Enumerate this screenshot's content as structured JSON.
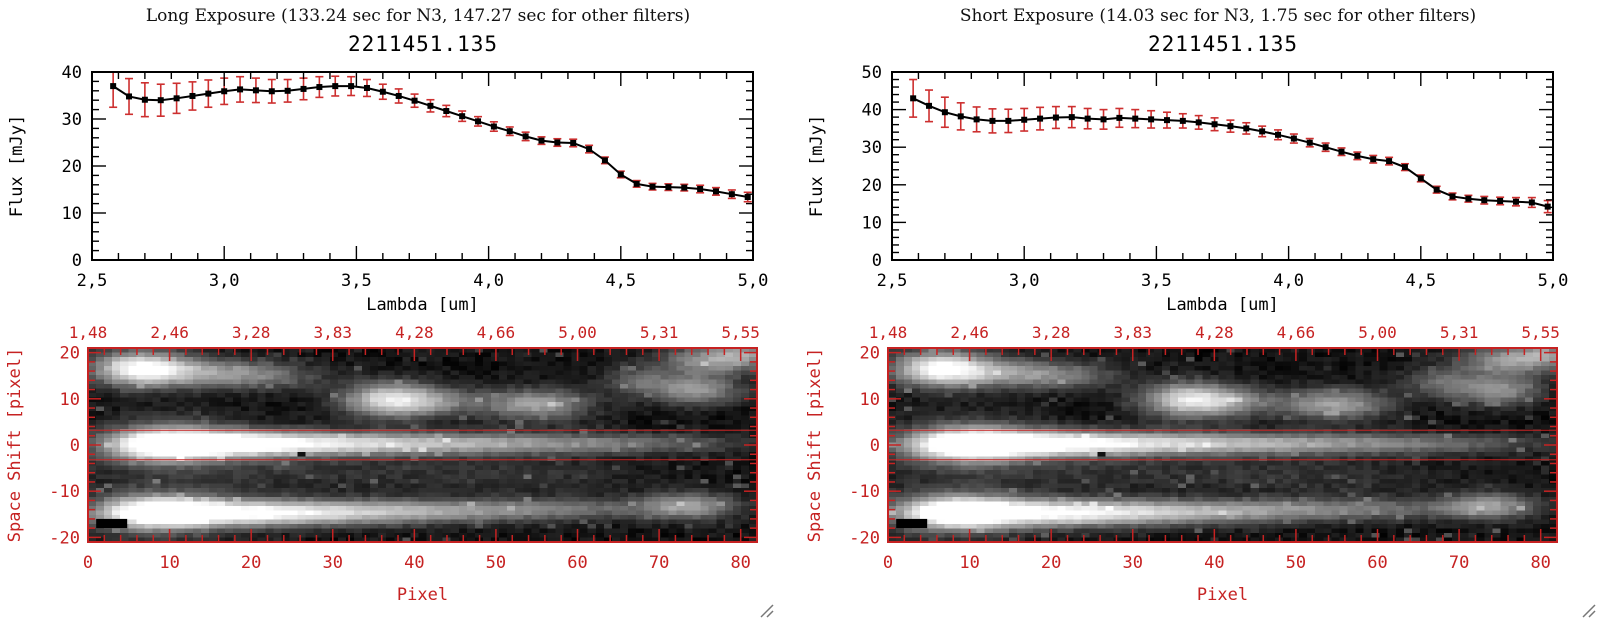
{
  "colors": {
    "error_red": "#cd2f2f",
    "image_red": "#c62222",
    "axis_black": "#000000",
    "grip_gray": "#777777"
  },
  "icons": {
    "resize_grip": "diagonal-resize-grip"
  },
  "panels": [
    {
      "header": "Long Exposure (133.24 sec for N3, 147.27 sec for other filters)",
      "spectrum": 0,
      "image": 1
    },
    {
      "header": "Short Exposure (14.03 sec for N3, 1.75 sec for other filters)",
      "spectrum": 2,
      "image": 3
    }
  ],
  "chart_data": [
    {
      "type": "line",
      "title": "2211451.135",
      "xlabel": "Lambda [um]",
      "ylabel": "Flux [mJy]",
      "xlim": [
        2.5,
        5.0
      ],
      "ylim": [
        0,
        40
      ],
      "xminor": 0.1,
      "yminor": 2,
      "xticks": [
        2.5,
        3.0,
        3.5,
        4.0,
        4.5,
        5.0
      ],
      "xtick_labels": [
        "2,5",
        "3,0",
        "3,5",
        "4,0",
        "4,5",
        "5,0"
      ],
      "yticks": [
        0,
        10,
        20,
        30,
        40
      ],
      "ytick_labels": [
        "0",
        "10",
        "20",
        "30",
        "40"
      ],
      "x": [
        2.58,
        2.64,
        2.7,
        2.76,
        2.82,
        2.88,
        2.94,
        3.0,
        3.06,
        3.12,
        3.18,
        3.24,
        3.3,
        3.36,
        3.42,
        3.48,
        3.54,
        3.6,
        3.66,
        3.72,
        3.78,
        3.84,
        3.9,
        3.96,
        4.02,
        4.08,
        4.14,
        4.2,
        4.26,
        4.32,
        4.38,
        4.44,
        4.5,
        4.56,
        4.62,
        4.68,
        4.74,
        4.8,
        4.86,
        4.92,
        4.98
      ],
      "y": [
        37.0,
        34.8,
        34.1,
        34.0,
        34.4,
        34.9,
        35.4,
        35.9,
        36.3,
        36.1,
        35.9,
        36.0,
        36.4,
        36.8,
        37.0,
        37.0,
        36.6,
        35.8,
        34.9,
        33.9,
        32.8,
        31.7,
        30.6,
        29.5,
        28.4,
        27.4,
        26.3,
        25.4,
        25.0,
        24.9,
        23.6,
        21.2,
        18.2,
        16.2,
        15.6,
        15.5,
        15.4,
        15.1,
        14.6,
        14.0,
        13.4
      ],
      "yerr": [
        4.5,
        3.8,
        3.6,
        3.4,
        3.2,
        3.0,
        2.9,
        2.8,
        2.7,
        2.6,
        2.5,
        2.4,
        2.3,
        2.2,
        2.1,
        2.0,
        1.8,
        1.6,
        1.5,
        1.4,
        1.3,
        1.2,
        1.1,
        1.0,
        1.0,
        0.9,
        0.9,
        0.8,
        0.8,
        0.8,
        0.8,
        0.7,
        0.7,
        0.7,
        0.7,
        0.7,
        0.7,
        0.8,
        0.8,
        0.9,
        1.0
      ]
    },
    {
      "type": "heatmap",
      "xlabel": "Pixel",
      "ylabel": "Space Shift [pixel]",
      "xlim": [
        0,
        82
      ],
      "ylim": [
        -21,
        21
      ],
      "xticks": [
        0,
        10,
        20,
        30,
        40,
        50,
        60,
        70,
        80
      ],
      "xtick_labels": [
        "0",
        "10",
        "20",
        "30",
        "40",
        "50",
        "60",
        "70",
        "80"
      ],
      "yticks": [
        -20,
        -10,
        0,
        10,
        20
      ],
      "ytick_labels": [
        "-20",
        "-10",
        "0",
        "10",
        "20"
      ],
      "top_axis_labels": [
        "1,48",
        "2,46",
        "3,28",
        "3,83",
        "4,28",
        "4,66",
        "5,00",
        "5,31",
        "5,55"
      ],
      "aperture_y": [
        3.2,
        -3.2
      ],
      "noise_seed": 11,
      "dark_spots": [
        {
          "x": 26,
          "y": -2
        }
      ],
      "marker_rect": {
        "x0": 1,
        "x1": 4.8,
        "y0": -18,
        "y1": -16
      },
      "blobs": [
        {
          "x": 9,
          "y": 0,
          "sx": 5,
          "sy": 2.4,
          "amp": 1.0
        },
        {
          "x": 10,
          "y": 1,
          "sx": 6,
          "sy": 4,
          "amp": 0.2
        },
        {
          "x": 18,
          "y": 0.3,
          "sx": 7,
          "sy": 2.0,
          "amp": 0.8
        },
        {
          "x": 30,
          "y": 0.3,
          "sx": 9,
          "sy": 1.8,
          "amp": 0.55
        },
        {
          "x": 44,
          "y": 0.3,
          "sx": 10,
          "sy": 1.7,
          "amp": 0.4
        },
        {
          "x": 58,
          "y": 0.3,
          "sx": 9,
          "sy": 1.6,
          "amp": 0.28
        },
        {
          "x": 72,
          "y": 0.3,
          "sx": 8,
          "sy": 1.5,
          "amp": 0.18
        },
        {
          "x": 8,
          "y": -15,
          "sx": 5,
          "sy": 2.4,
          "amp": 0.95
        },
        {
          "x": 8,
          "y": -15,
          "sx": 6,
          "sy": 4,
          "amp": 0.2
        },
        {
          "x": 18,
          "y": -15,
          "sx": 8,
          "sy": 2.1,
          "amp": 0.7
        },
        {
          "x": 31,
          "y": -15,
          "sx": 10,
          "sy": 1.9,
          "amp": 0.5
        },
        {
          "x": 46,
          "y": -14.5,
          "sx": 11,
          "sy": 1.7,
          "amp": 0.33
        },
        {
          "x": 60,
          "y": -14,
          "sx": 9,
          "sy": 1.6,
          "amp": 0.22
        },
        {
          "x": 74,
          "y": -13.5,
          "sx": 4,
          "sy": 2.0,
          "amp": 0.5
        },
        {
          "x": 6,
          "y": 17,
          "sx": 4,
          "sy": 2.6,
          "amp": 0.9
        },
        {
          "x": 14,
          "y": 16,
          "sx": 6,
          "sy": 2.2,
          "amp": 0.45
        },
        {
          "x": 22,
          "y": 15,
          "sx": 5,
          "sy": 2.0,
          "amp": 0.22
        },
        {
          "x": 37,
          "y": 10,
          "sx": 4,
          "sy": 2.6,
          "amp": 0.8
        },
        {
          "x": 43,
          "y": 9.5,
          "sx": 4,
          "sy": 2.1,
          "amp": 0.3
        },
        {
          "x": 55,
          "y": 9,
          "sx": 4.5,
          "sy": 2.3,
          "amp": 0.55
        },
        {
          "x": 68,
          "y": 14,
          "sx": 3,
          "sy": 2.2,
          "amp": 0.3
        },
        {
          "x": 75,
          "y": 12,
          "sx": 3.5,
          "sy": 2.1,
          "amp": 0.5
        },
        {
          "x": 76,
          "y": 18.5,
          "sx": 4,
          "sy": 2.4,
          "amp": 0.45
        },
        {
          "x": 81,
          "y": 20,
          "sx": 3,
          "sy": 2,
          "amp": 0.4
        },
        {
          "x": 25,
          "y": -6,
          "sx": 18,
          "sy": 3,
          "amp": 0.1
        },
        {
          "x": 55,
          "y": -7,
          "sx": 10,
          "sy": 3,
          "amp": 0.08
        }
      ]
    },
    {
      "type": "line",
      "title": "2211451.135",
      "xlabel": "Lambda [um]",
      "ylabel": "Flux [mJy]",
      "xlim": [
        2.5,
        5.0
      ],
      "ylim": [
        0,
        50
      ],
      "xminor": 0.1,
      "yminor": 2,
      "xticks": [
        2.5,
        3.0,
        3.5,
        4.0,
        4.5,
        5.0
      ],
      "xtick_labels": [
        "2,5",
        "3,0",
        "3,5",
        "4,0",
        "4,5",
        "5,0"
      ],
      "yticks": [
        0,
        10,
        20,
        30,
        40,
        50
      ],
      "ytick_labels": [
        "0",
        "10",
        "20",
        "30",
        "40",
        "50"
      ],
      "x": [
        2.58,
        2.64,
        2.7,
        2.76,
        2.82,
        2.88,
        2.94,
        3.0,
        3.06,
        3.12,
        3.18,
        3.24,
        3.3,
        3.36,
        3.42,
        3.48,
        3.54,
        3.6,
        3.66,
        3.72,
        3.78,
        3.84,
        3.9,
        3.96,
        4.02,
        4.08,
        4.14,
        4.2,
        4.26,
        4.32,
        4.38,
        4.44,
        4.5,
        4.56,
        4.62,
        4.68,
        4.74,
        4.8,
        4.86,
        4.92,
        4.98
      ],
      "y": [
        43.0,
        41.0,
        39.3,
        38.2,
        37.4,
        37.0,
        37.0,
        37.3,
        37.6,
        37.9,
        38.0,
        37.6,
        37.4,
        37.8,
        37.6,
        37.4,
        37.2,
        37.0,
        36.6,
        36.1,
        35.6,
        35.0,
        34.2,
        33.3,
        32.3,
        31.2,
        30.0,
        28.8,
        27.7,
        26.8,
        26.3,
        24.7,
        21.7,
        18.7,
        16.9,
        16.3,
        15.9,
        15.7,
        15.5,
        15.3,
        14.2
      ],
      "yerr": [
        5.0,
        4.2,
        4.0,
        3.6,
        3.3,
        3.2,
        3.1,
        3.0,
        3.0,
        2.9,
        2.8,
        2.7,
        2.6,
        2.5,
        2.4,
        2.3,
        2.1,
        1.9,
        1.8,
        1.7,
        1.6,
        1.5,
        1.4,
        1.3,
        1.2,
        1.1,
        1.1,
        1.0,
        1.0,
        1.0,
        1.0,
        0.9,
        0.9,
        0.9,
        0.9,
        0.9,
        1.0,
        1.0,
        1.1,
        1.3,
        1.6
      ]
    },
    {
      "type": "heatmap",
      "xlabel": "Pixel",
      "ylabel": "Space Shift [pixel]",
      "xlim": [
        0,
        82
      ],
      "ylim": [
        -21,
        21
      ],
      "xticks": [
        0,
        10,
        20,
        30,
        40,
        50,
        60,
        70,
        80
      ],
      "xtick_labels": [
        "0",
        "10",
        "20",
        "30",
        "40",
        "50",
        "60",
        "70",
        "80"
      ],
      "yticks": [
        -20,
        -10,
        0,
        10,
        20
      ],
      "ytick_labels": [
        "-20",
        "-10",
        "0",
        "10",
        "20"
      ],
      "top_axis_labels": [
        "1,48",
        "2,46",
        "3,28",
        "3,83",
        "4,28",
        "4,66",
        "5,00",
        "5,31",
        "5,55"
      ],
      "aperture_y": [
        3.2,
        -3.2
      ],
      "noise_seed": 29,
      "dark_spots": [
        {
          "x": 26,
          "y": -2
        }
      ],
      "marker_rect": {
        "x0": 1,
        "x1": 4.8,
        "y0": -18,
        "y1": -16
      },
      "blobs": [
        {
          "x": 9,
          "y": 0,
          "sx": 5,
          "sy": 2.4,
          "amp": 1.0
        },
        {
          "x": 10,
          "y": 1,
          "sx": 6,
          "sy": 4,
          "amp": 0.2
        },
        {
          "x": 18,
          "y": 0.3,
          "sx": 7,
          "sy": 2.0,
          "amp": 0.8
        },
        {
          "x": 30,
          "y": 0.3,
          "sx": 9,
          "sy": 1.8,
          "amp": 0.55
        },
        {
          "x": 44,
          "y": 0.3,
          "sx": 10,
          "sy": 1.7,
          "amp": 0.4
        },
        {
          "x": 58,
          "y": 0.3,
          "sx": 9,
          "sy": 1.6,
          "amp": 0.28
        },
        {
          "x": 72,
          "y": 0.3,
          "sx": 8,
          "sy": 1.5,
          "amp": 0.18
        },
        {
          "x": 8,
          "y": -15,
          "sx": 5,
          "sy": 2.4,
          "amp": 0.95
        },
        {
          "x": 8,
          "y": -15,
          "sx": 6,
          "sy": 4,
          "amp": 0.2
        },
        {
          "x": 18,
          "y": -15,
          "sx": 8,
          "sy": 2.1,
          "amp": 0.7
        },
        {
          "x": 31,
          "y": -15,
          "sx": 10,
          "sy": 1.9,
          "amp": 0.5
        },
        {
          "x": 46,
          "y": -14.5,
          "sx": 11,
          "sy": 1.7,
          "amp": 0.33
        },
        {
          "x": 60,
          "y": -14,
          "sx": 9,
          "sy": 1.6,
          "amp": 0.22
        },
        {
          "x": 74,
          "y": -13.5,
          "sx": 4,
          "sy": 2.0,
          "amp": 0.5
        },
        {
          "x": 6,
          "y": 17,
          "sx": 4,
          "sy": 2.6,
          "amp": 0.9
        },
        {
          "x": 14,
          "y": 16,
          "sx": 6,
          "sy": 2.2,
          "amp": 0.45
        },
        {
          "x": 22,
          "y": 15,
          "sx": 5,
          "sy": 2.0,
          "amp": 0.22
        },
        {
          "x": 37,
          "y": 10,
          "sx": 4,
          "sy": 2.6,
          "amp": 0.8
        },
        {
          "x": 43,
          "y": 9.5,
          "sx": 4,
          "sy": 2.1,
          "amp": 0.3
        },
        {
          "x": 55,
          "y": 9,
          "sx": 4.5,
          "sy": 2.3,
          "amp": 0.55
        },
        {
          "x": 68,
          "y": 14,
          "sx": 3,
          "sy": 2.2,
          "amp": 0.3
        },
        {
          "x": 75,
          "y": 12,
          "sx": 3.5,
          "sy": 2.1,
          "amp": 0.5
        },
        {
          "x": 76,
          "y": 18.5,
          "sx": 4,
          "sy": 2.4,
          "amp": 0.45
        },
        {
          "x": 81,
          "y": 20,
          "sx": 3,
          "sy": 2,
          "amp": 0.4
        },
        {
          "x": 25,
          "y": -6,
          "sx": 18,
          "sy": 3,
          "amp": 0.1
        },
        {
          "x": 55,
          "y": -7,
          "sx": 10,
          "sy": 3,
          "amp": 0.08
        }
      ]
    }
  ]
}
